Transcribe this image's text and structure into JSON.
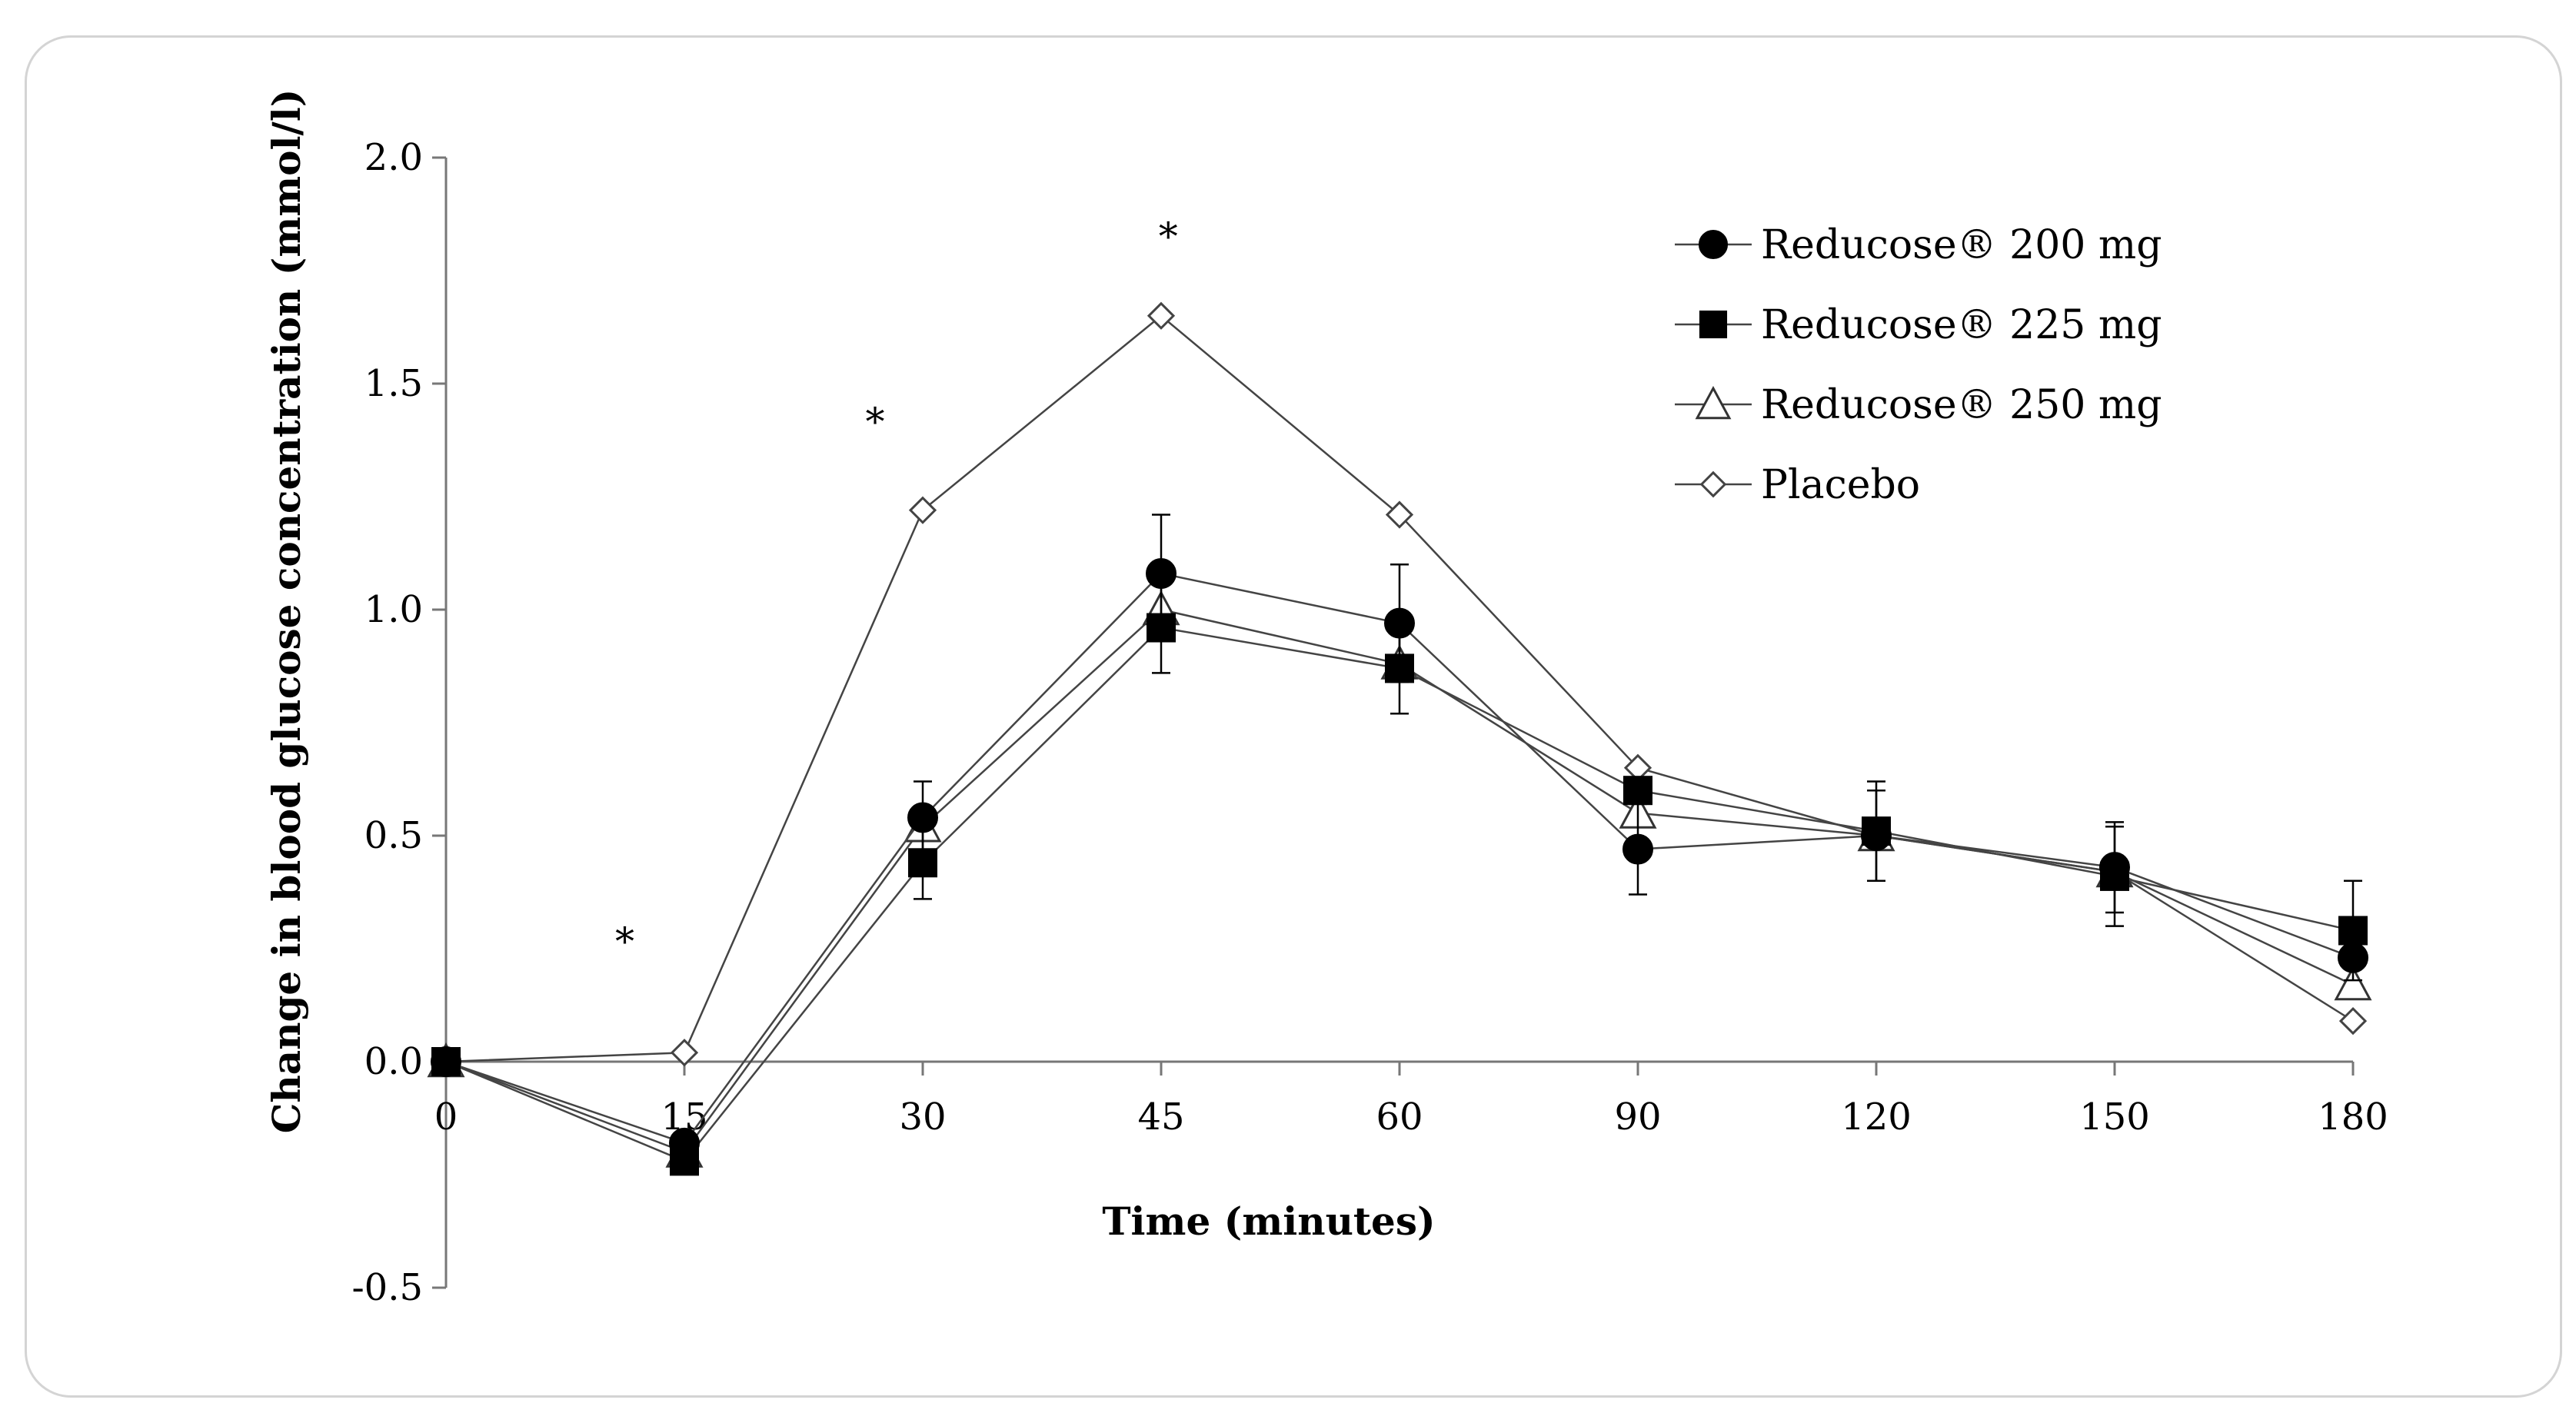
{
  "chart_data": {
    "type": "line",
    "title": "",
    "xlabel": "Time (minutes)",
    "ylabel": "Change in blood glucose concentration (mmol/l)",
    "categories": [
      "0",
      "15",
      "30",
      "45",
      "60",
      "90",
      "120",
      "150",
      "180"
    ],
    "ylim": [
      -0.5,
      2.0
    ],
    "yticks": [
      "-0.5",
      "0.0",
      "0.5",
      "1.0",
      "1.5",
      "2.0"
    ],
    "ytick_values": [
      -0.5,
      0.0,
      0.5,
      1.0,
      1.5,
      2.0
    ],
    "grid": false,
    "legend_position": "top-right",
    "series": [
      {
        "name": "Reducose® 200 mg",
        "marker": "filled-circle",
        "values": [
          0.0,
          -0.18,
          0.54,
          1.08,
          0.97,
          0.47,
          0.5,
          0.43,
          0.23
        ],
        "error": [
          0.0,
          0.0,
          0.08,
          0.13,
          0.13,
          0.1,
          0.1,
          0.1,
          0.0
        ]
      },
      {
        "name": "Reducose® 225 mg",
        "marker": "filled-square",
        "values": [
          0.0,
          -0.22,
          0.44,
          0.96,
          0.87,
          0.6,
          0.51,
          0.41,
          0.29
        ],
        "error": [
          0.0,
          0.0,
          0.08,
          0.1,
          0.1,
          0.0,
          0.11,
          0.11,
          0.11
        ]
      },
      {
        "name": "Reducose® 250 mg",
        "marker": "open-triangle",
        "values": [
          0.0,
          -0.2,
          0.52,
          1.0,
          0.88,
          0.55,
          0.5,
          0.42,
          0.17
        ],
        "error": [
          0,
          0,
          0,
          0,
          0,
          0,
          0,
          0,
          0
        ]
      },
      {
        "name": "Placebo",
        "marker": "open-diamond",
        "values": [
          0.0,
          0.02,
          1.22,
          1.65,
          1.21,
          0.65,
          0.5,
          0.42,
          0.09
        ],
        "error": [
          0,
          0,
          0,
          0,
          0,
          0,
          0,
          0,
          0
        ]
      }
    ],
    "annotations": [
      {
        "text": "*",
        "category_pos": 0.75,
        "y": 0.27
      },
      {
        "text": "*",
        "category_pos": 1.8,
        "y": 1.42
      },
      {
        "text": "*",
        "category_pos": 3.03,
        "y": 1.83
      }
    ]
  }
}
